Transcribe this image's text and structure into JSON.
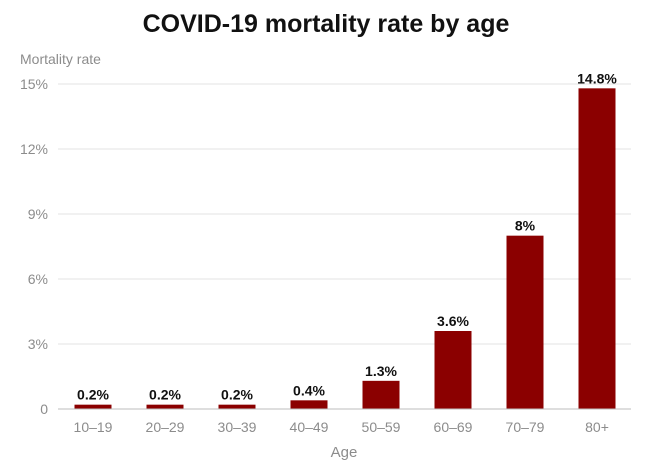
{
  "chart_data": {
    "type": "bar",
    "title": "COVID-19 mortality rate by age",
    "ylabel": "Mortality rate",
    "xlabel": "Age",
    "categories": [
      "10–19",
      "20–29",
      "30–39",
      "40–49",
      "50–59",
      "60–69",
      "70–79",
      "80+"
    ],
    "values": [
      0.2,
      0.2,
      0.2,
      0.4,
      1.3,
      3.6,
      8,
      14.8
    ],
    "data_labels": [
      "0.2%",
      "0.2%",
      "0.2%",
      "0.4%",
      "1.3%",
      "3.6%",
      "8%",
      "14.8%"
    ],
    "ylim": [
      0,
      15
    ],
    "yticks": [
      0,
      3,
      6,
      9,
      12,
      15
    ],
    "ytick_labels": [
      "0",
      "3%",
      "6%",
      "9%",
      "12%",
      "15%"
    ],
    "grid": true,
    "bar_color": "#8b0000"
  }
}
